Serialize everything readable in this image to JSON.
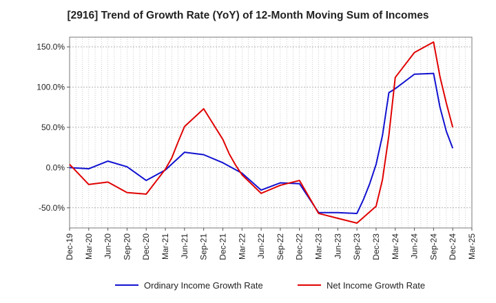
{
  "chart_data": {
    "type": "line",
    "title": "[2916]  Trend of Growth Rate (YoY) of 12-Month Moving Sum of Incomes",
    "xlabel": "",
    "ylabel": "",
    "x": [
      "Dec-19",
      "Mar-20",
      "Jun-20",
      "Sep-20",
      "Dec-20",
      "Mar-21",
      "Jun-21",
      "Sep-21",
      "Dec-21",
      "Mar-22",
      "Jun-22",
      "Sep-22",
      "Dec-22",
      "Mar-23",
      "Jun-23",
      "Sep-23",
      "Dec-23",
      "Mar-24",
      "Jun-24",
      "Sep-24",
      "Dec-24",
      "Mar-25"
    ],
    "ylim": [
      -75,
      162
    ],
    "yticks": [
      -50,
      0,
      50,
      100,
      150
    ],
    "ytick_labels": [
      "-50.0%",
      "0.0%",
      "50.0%",
      "100.0%",
      "150.0%"
    ],
    "grid": true,
    "legend_position": "bottom",
    "series": [
      {
        "name": "Ordinary Income Growth Rate",
        "color": "#1010d0",
        "points": [
          [
            "Dec-19",
            0
          ],
          [
            "Mar-20",
            -1.5
          ],
          [
            "Jun-20",
            8
          ],
          [
            "Sep-20",
            1
          ],
          [
            "Dec-20",
            -16
          ],
          [
            "Mar-21",
            -3
          ],
          [
            "Jun-21",
            19
          ],
          [
            "Sep-21",
            16
          ],
          [
            "Dec-21",
            6
          ],
          [
            "Mar-22",
            -7
          ],
          [
            "Jun-22",
            -28
          ],
          [
            "Sep-22",
            -19
          ],
          [
            "Dec-22",
            -20
          ],
          [
            "Mar-23",
            -56
          ],
          [
            "Jun-23",
            -56
          ],
          [
            "Sep-23",
            -57
          ],
          [
            "Oct-23",
            -40
          ],
          [
            "Nov-23",
            -20
          ],
          [
            "Dec-23",
            4
          ],
          [
            "Jan-24",
            40
          ],
          [
            "Feb-24",
            93
          ],
          [
            "Mar-24",
            98
          ],
          [
            "Jun-24",
            116
          ],
          [
            "Sep-24",
            117
          ],
          [
            "Oct-24",
            75
          ],
          [
            "Nov-24",
            45
          ],
          [
            "Dec-24",
            24
          ]
        ]
      },
      {
        "name": "Net Income Growth Rate",
        "color": "#e00000",
        "points": [
          [
            "Dec-19",
            4
          ],
          [
            "Mar-20",
            -21
          ],
          [
            "Jun-20",
            -18
          ],
          [
            "Sep-20",
            -31
          ],
          [
            "Dec-20",
            -33
          ],
          [
            "Mar-21",
            -2
          ],
          [
            "Apr-21",
            12
          ],
          [
            "May-21",
            32
          ],
          [
            "Jun-21",
            51
          ],
          [
            "Sep-21",
            73
          ],
          [
            "Dec-21",
            35
          ],
          [
            "Jan-22",
            17
          ],
          [
            "Feb-22",
            3
          ],
          [
            "Mar-22",
            -9
          ],
          [
            "Jun-22",
            -32
          ],
          [
            "Sep-22",
            -22
          ],
          [
            "Dec-22",
            -16
          ],
          [
            "Mar-23",
            -57
          ],
          [
            "Jun-23",
            -63
          ],
          [
            "Sep-23",
            -69
          ],
          [
            "Dec-23",
            -48
          ],
          [
            "Jan-24",
            -15
          ],
          [
            "Feb-24",
            40
          ],
          [
            "Mar-24",
            112
          ],
          [
            "Jun-24",
            143
          ],
          [
            "Sep-24",
            156
          ],
          [
            "Oct-24",
            113
          ],
          [
            "Nov-24",
            80
          ],
          [
            "Dec-24",
            50
          ]
        ]
      }
    ]
  }
}
